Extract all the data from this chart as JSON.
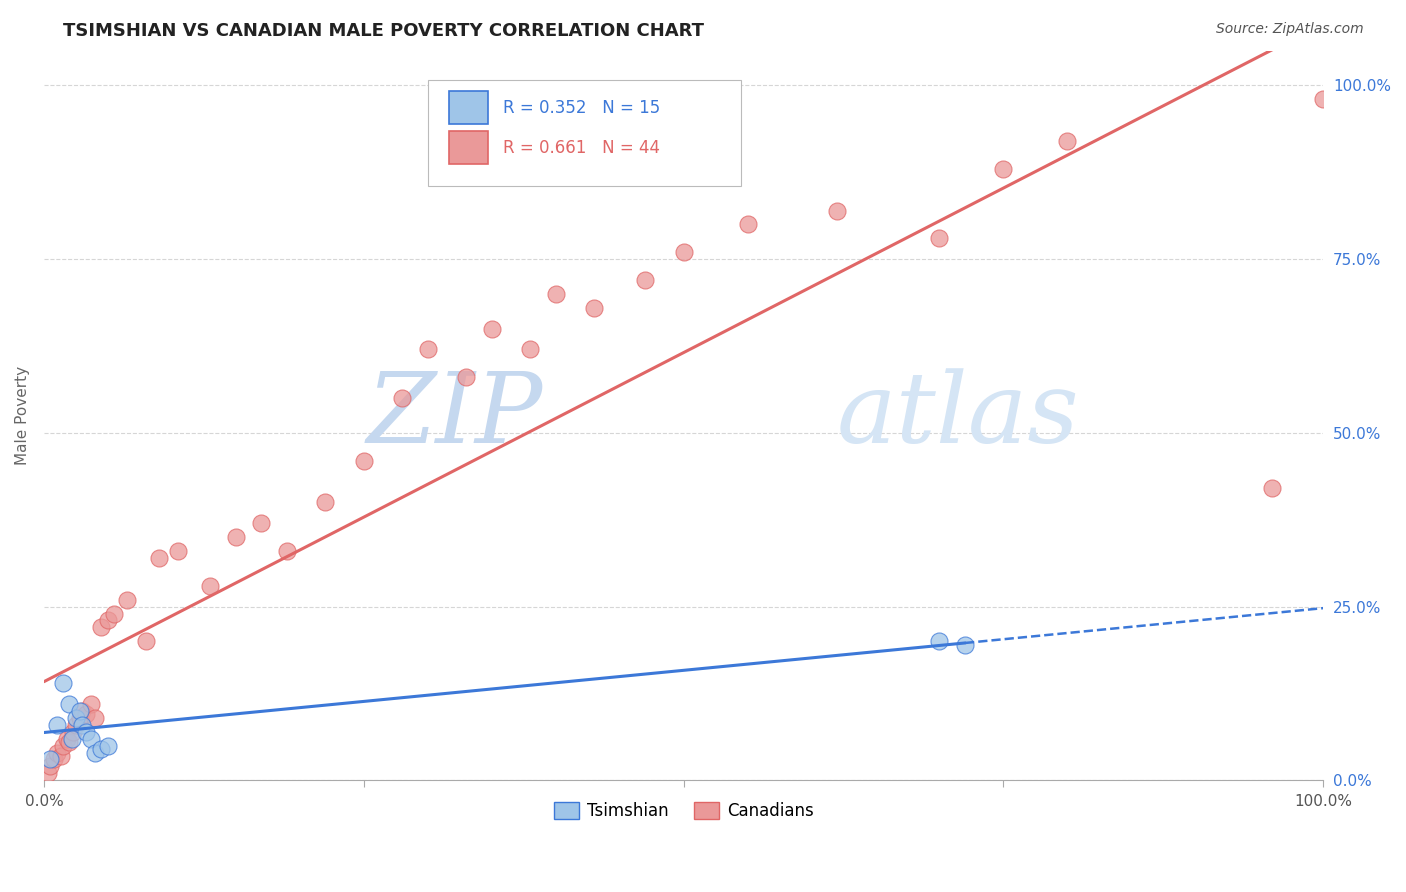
{
  "title": "TSIMSHIAN VS CANADIAN MALE POVERTY CORRELATION CHART",
  "source": "Source: ZipAtlas.com",
  "ylabel": "Male Poverty",
  "legend_tsimshian": "Tsimshian",
  "legend_canadians": "Canadians",
  "r_tsimshian": 0.352,
  "n_tsimshian": 15,
  "r_canadians": 0.661,
  "n_canadians": 44,
  "tsimshian_color": "#9fc5e8",
  "canadian_color": "#ea9999",
  "tsimshian_line_color": "#3c78d8",
  "canadian_line_color": "#e06666",
  "tsimshian_x": [
    0.5,
    1.0,
    1.5,
    2.0,
    2.2,
    2.5,
    2.8,
    3.0,
    3.3,
    3.7,
    4.0,
    4.5,
    5.0,
    70.0,
    72.0
  ],
  "tsimshian_y": [
    3.0,
    8.0,
    14.0,
    11.0,
    6.0,
    9.0,
    10.0,
    8.0,
    7.0,
    6.0,
    4.0,
    4.5,
    5.0,
    20.0,
    19.5
  ],
  "canadian_x": [
    0.3,
    0.5,
    0.8,
    1.0,
    1.3,
    1.5,
    1.8,
    2.0,
    2.3,
    2.5,
    2.8,
    3.0,
    3.3,
    3.7,
    4.0,
    4.5,
    5.0,
    5.5,
    6.5,
    8.0,
    9.0,
    10.5,
    13.0,
    15.0,
    17.0,
    19.0,
    22.0,
    25.0,
    28.0,
    30.0,
    33.0,
    35.0,
    38.0,
    40.0,
    43.0,
    47.0,
    50.0,
    55.0,
    62.0,
    70.0,
    75.0,
    80.0,
    96.0,
    100.0
  ],
  "canadian_y": [
    1.0,
    2.0,
    3.0,
    4.0,
    3.5,
    5.0,
    6.0,
    5.5,
    7.0,
    8.0,
    9.0,
    10.0,
    9.5,
    11.0,
    9.0,
    22.0,
    23.0,
    24.0,
    26.0,
    20.0,
    32.0,
    33.0,
    28.0,
    35.0,
    37.0,
    33.0,
    40.0,
    46.0,
    55.0,
    62.0,
    58.0,
    65.0,
    62.0,
    70.0,
    68.0,
    72.0,
    76.0,
    80.0,
    82.0,
    78.0,
    88.0,
    92.0,
    42.0,
    98.0
  ],
  "background_color": "#ffffff",
  "grid_color": "#cccccc",
  "watermark_color_zip": "#c9d9f0",
  "watermark_color_atlas": "#d8e8f8",
  "ytick_labels": [
    "0.0%",
    "25.0%",
    "50.0%",
    "75.0%",
    "100.0%"
  ],
  "ytick_values": [
    0,
    25,
    50,
    75,
    100
  ],
  "xlim": [
    0,
    100
  ],
  "ylim": [
    0,
    105
  ]
}
